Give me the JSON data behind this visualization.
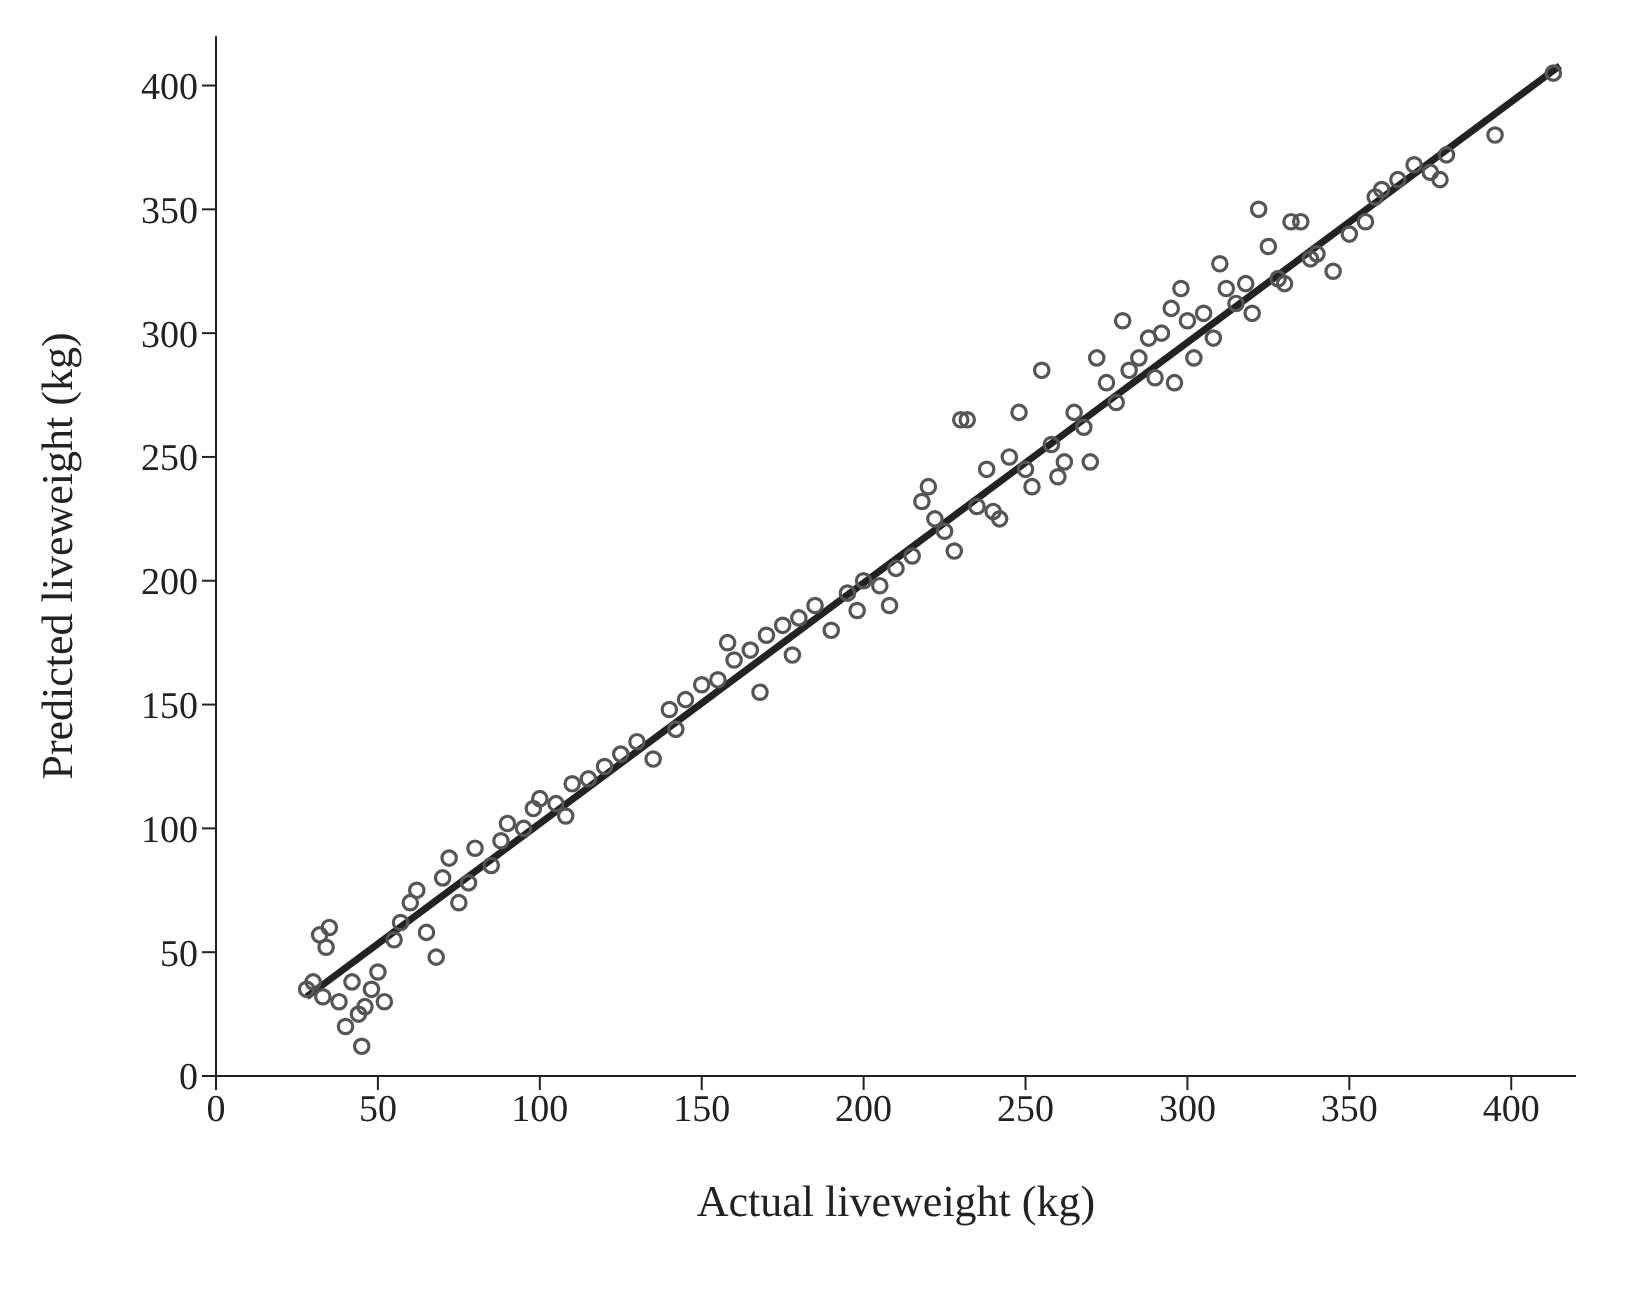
{
  "chart_data": {
    "type": "scatter",
    "xlabel": "Actual liveweight (kg)",
    "ylabel": "Predicted liveweight (kg)",
    "xlim": [
      0,
      420
    ],
    "xticks": [
      0,
      50,
      100,
      150,
      200,
      250,
      300,
      350,
      400
    ],
    "ylim": [
      0,
      420
    ],
    "yticks": [
      0,
      50,
      100,
      150,
      200,
      250,
      300,
      350,
      400
    ],
    "grid": false,
    "legend": false,
    "marker": "circle",
    "series": [
      {
        "color": "#555555",
        "x": [
          28,
          30,
          32,
          34,
          35,
          33,
          38,
          40,
          42,
          44,
          45,
          46,
          48,
          50,
          52,
          55,
          57,
          60,
          62,
          65,
          68,
          70,
          72,
          75,
          78,
          80,
          85,
          88,
          90,
          95,
          98,
          100,
          105,
          108,
          110,
          115,
          120,
          125,
          130,
          135,
          140,
          142,
          145,
          150,
          155,
          158,
          160,
          165,
          168,
          170,
          175,
          178,
          180,
          185,
          190,
          195,
          198,
          200,
          205,
          208,
          210,
          215,
          218,
          220,
          222,
          225,
          228,
          230,
          232,
          235,
          238,
          240,
          242,
          245,
          248,
          250,
          252,
          255,
          258,
          260,
          262,
          265,
          268,
          270,
          272,
          275,
          278,
          280,
          282,
          285,
          288,
          290,
          292,
          295,
          296,
          298,
          300,
          302,
          305,
          308,
          310,
          312,
          315,
          318,
          320,
          322,
          325,
          328,
          330,
          332,
          335,
          338,
          340,
          345,
          350,
          355,
          358,
          360,
          365,
          370,
          375,
          378,
          380,
          395,
          413
        ],
        "values": [
          35,
          38,
          57,
          52,
          60,
          32,
          30,
          20,
          38,
          25,
          12,
          28,
          35,
          42,
          30,
          55,
          62,
          70,
          75,
          58,
          48,
          80,
          88,
          70,
          78,
          92,
          85,
          95,
          102,
          100,
          108,
          112,
          110,
          105,
          118,
          120,
          125,
          130,
          135,
          128,
          148,
          140,
          152,
          158,
          160,
          175,
          168,
          172,
          155,
          178,
          182,
          170,
          185,
          190,
          180,
          195,
          188,
          200,
          198,
          190,
          205,
          210,
          232,
          238,
          225,
          220,
          212,
          265,
          265,
          230,
          245,
          228,
          225,
          250,
          268,
          245,
          238,
          285,
          255,
          242,
          248,
          268,
          262,
          248,
          290,
          280,
          272,
          305,
          285,
          290,
          298,
          282,
          300,
          310,
          280,
          318,
          305,
          290,
          308,
          298,
          328,
          318,
          312,
          320,
          308,
          350,
          335,
          322,
          320,
          345,
          345,
          330,
          332,
          325,
          340,
          345,
          355,
          358,
          362,
          368,
          365,
          362,
          372,
          380,
          405
        ]
      },
      {
        "type": "line",
        "color": "#222222",
        "x": [
          28,
          415
        ],
        "values": [
          32,
          408
        ],
        "marker": "none",
        "line_style": "solid"
      }
    ]
  }
}
